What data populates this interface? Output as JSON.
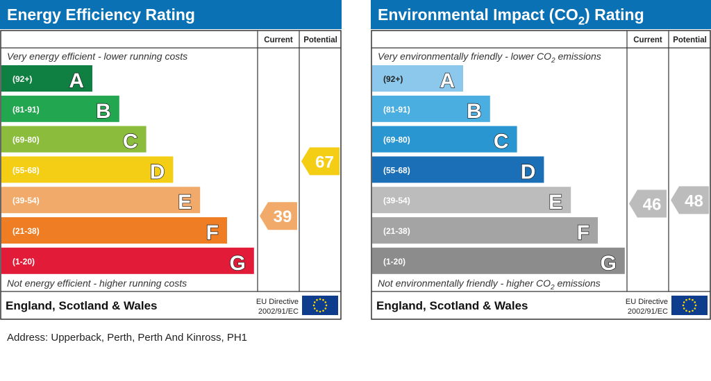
{
  "charts": [
    {
      "title_main": "Energy Efficiency Rating",
      "title_sub": "",
      "title_tail": "",
      "col_current": "Current",
      "col_potential": "Potential",
      "top_text": "Very energy efficient - lower running costs",
      "top_sub": "",
      "top_tail": "",
      "bottom_text": "Not energy efficient - higher running costs",
      "bottom_sub": "",
      "bottom_tail": "",
      "region": "England, Scotland & Wales",
      "directive_line1": "EU Directive",
      "directive_line2": "2002/91/EC",
      "colors": {
        "header": "#0a71b4",
        "bands": [
          "#0f8042",
          "#22a650",
          "#8bbc3c",
          "#f4ce14",
          "#f2aa6a",
          "#ee7d23",
          "#e21c38"
        ],
        "current": "#f2aa6a",
        "potential": "#f4ce14"
      },
      "current_value": "39",
      "potential_value": "67"
    },
    {
      "title_main": "Environmental Impact (CO",
      "title_sub": "2",
      "title_tail": ") Rating",
      "col_current": "Current",
      "col_potential": "Potential",
      "top_text": "Very environmentally friendly - lower CO",
      "top_sub": "2",
      "top_tail": " emissions",
      "bottom_text": "Not environmentally friendly - higher CO",
      "bottom_sub": "2",
      "bottom_tail": " emissions",
      "region": "England, Scotland & Wales",
      "directive_line1": "EU Directive",
      "directive_line2": "2002/91/EC",
      "colors": {
        "header": "#0a71b4",
        "bands": [
          "#8cc8ec",
          "#4aaee0",
          "#2996d2",
          "#1a6fb6",
          "#bcbcbc",
          "#a4a4a4",
          "#8c8c8c"
        ],
        "current": "#bcbcbc",
        "potential": "#bcbcbc"
      },
      "current_value": "46",
      "potential_value": "48"
    }
  ],
  "chart_data": [
    {
      "type": "bar",
      "categories": [
        "A",
        "B",
        "C",
        "D",
        "E",
        "F",
        "G"
      ],
      "ranges": [
        "(92+)",
        "(81-91)",
        "(69-80)",
        "(55-68)",
        "(39-54)",
        "(21-38)",
        "(1-20)"
      ],
      "bounds": [
        [
          92,
          100
        ],
        [
          81,
          91
        ],
        [
          69,
          80
        ],
        [
          55,
          68
        ],
        [
          39,
          54
        ],
        [
          21,
          38
        ],
        [
          1,
          20
        ]
      ],
      "current": 39,
      "potential": 67
    },
    {
      "type": "bar",
      "categories": [
        "A",
        "B",
        "C",
        "D",
        "E",
        "F",
        "G"
      ],
      "ranges": [
        "(92+)",
        "(81-91)",
        "(69-80)",
        "(55-68)",
        "(39-54)",
        "(21-38)",
        "(1-20)"
      ],
      "bounds": [
        [
          92,
          100
        ],
        [
          81,
          91
        ],
        [
          69,
          80
        ],
        [
          55,
          68
        ],
        [
          39,
          54
        ],
        [
          21,
          38
        ],
        [
          1,
          20
        ]
      ],
      "current": 46,
      "potential": 48
    }
  ],
  "address": "Address: Upperback, Perth, Perth And Kinross, PH1"
}
